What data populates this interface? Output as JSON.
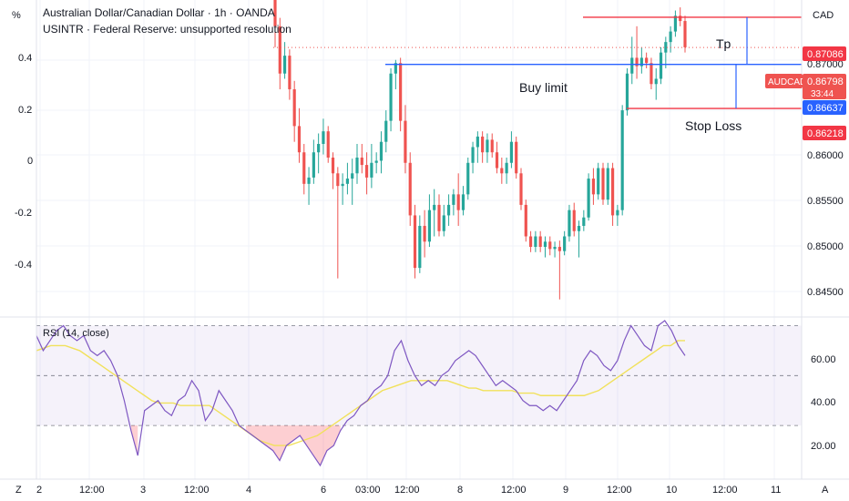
{
  "header": {
    "title": "Australian Dollar/Canadian Dollar · 1h · OANDA",
    "indicator": "USINTR · Federal Reserve: unsupported resolution",
    "left_unit": "%",
    "right_unit": "CAD",
    "rsi_label": "RSI (14, close)"
  },
  "left_axis": {
    "ticks": [
      "0.4",
      "0.2",
      "0",
      "-0.2",
      "-0.4"
    ]
  },
  "price_axis": {
    "ticks": [
      "0.87000",
      "0.86000",
      "0.85500",
      "0.85000",
      "0.84500"
    ]
  },
  "rsi_axis": {
    "ticks": [
      "60.00",
      "40.00",
      "20.00"
    ]
  },
  "time_axis": {
    "ticks": [
      "2",
      "12:00",
      "3",
      "12:00",
      "4",
      "6",
      "03:00",
      "12:00",
      "8",
      "12:00",
      "9",
      "12:00",
      "10",
      "12:00",
      "11"
    ],
    "corner_left": "Z",
    "corner_right": "A"
  },
  "annotations": {
    "tp": "Tp",
    "buy_limit": "Buy limit",
    "stop_loss": "Stop Loss"
  },
  "price_tags": {
    "tp": "0.87086",
    "symbol": "AUDCAD",
    "last": "0.86798",
    "countdown": "33:44",
    "buy": "0.86637",
    "sl": "0.86218"
  },
  "colors": {
    "up": "#26a69a",
    "down": "#ef5350",
    "blue_line": "#2962ff",
    "red_line": "#f23645",
    "rsi_line": "#7e57c2",
    "rsi_ma": "#f1e15b",
    "rsi_band": "#7e57c2"
  },
  "chart_data": [
    {
      "type": "candlestick",
      "title": "Australian Dollar/Canadian Dollar · 1h · OANDA",
      "ylabel": "CAD",
      "ylim": [
        0.8425,
        0.8725
      ],
      "levels": {
        "tp": 0.87086,
        "buy_limit": 0.86637,
        "stop_loss": 0.86218,
        "last": 0.86798
      },
      "candles": [
        [
          0.8735,
          0.8745,
          0.868,
          0.87
        ],
        [
          0.87,
          0.8708,
          0.864,
          0.8655
        ],
        [
          0.8655,
          0.8685,
          0.865,
          0.8672
        ],
        [
          0.8672,
          0.8678,
          0.863,
          0.864
        ],
        [
          0.864,
          0.8648,
          0.859,
          0.8605
        ],
        [
          0.8605,
          0.8622,
          0.857,
          0.858
        ],
        [
          0.858,
          0.8588,
          0.854,
          0.855
        ],
        [
          0.855,
          0.8566,
          0.853,
          0.8556
        ],
        [
          0.8556,
          0.8592,
          0.855,
          0.858
        ],
        [
          0.858,
          0.8598,
          0.856,
          0.8588
        ],
        [
          0.8588,
          0.8612,
          0.8578,
          0.86
        ],
        [
          0.86,
          0.8605,
          0.857,
          0.8575
        ],
        [
          0.8575,
          0.858,
          0.8545,
          0.856
        ],
        [
          0.856,
          0.8566,
          0.846,
          0.8548
        ],
        [
          0.8548,
          0.856,
          0.853,
          0.855
        ],
        [
          0.855,
          0.857,
          0.854,
          0.8555
        ],
        [
          0.8555,
          0.8574,
          0.853,
          0.856
        ],
        [
          0.856,
          0.8588,
          0.855,
          0.8575
        ],
        [
          0.8575,
          0.8588,
          0.856,
          0.8568
        ],
        [
          0.8568,
          0.858,
          0.854,
          0.8556
        ],
        [
          0.8556,
          0.8588,
          0.8546,
          0.857
        ],
        [
          0.857,
          0.858,
          0.856,
          0.8572
        ],
        [
          0.8572,
          0.86,
          0.856,
          0.859
        ],
        [
          0.859,
          0.862,
          0.858,
          0.861
        ],
        [
          0.861,
          0.866,
          0.86,
          0.8655
        ],
        [
          0.8655,
          0.8668,
          0.864,
          0.8665
        ],
        [
          0.8665,
          0.867,
          0.86,
          0.861
        ],
        [
          0.861,
          0.8625,
          0.856,
          0.857
        ],
        [
          0.857,
          0.858,
          0.851,
          0.852
        ],
        [
          0.852,
          0.853,
          0.846,
          0.847
        ],
        [
          0.847,
          0.852,
          0.8465,
          0.851
        ],
        [
          0.851,
          0.8525,
          0.848,
          0.8495
        ],
        [
          0.8495,
          0.854,
          0.849,
          0.8525
        ],
        [
          0.8525,
          0.8545,
          0.85,
          0.853
        ],
        [
          0.853,
          0.854,
          0.85,
          0.8505
        ],
        [
          0.8505,
          0.853,
          0.85,
          0.852
        ],
        [
          0.852,
          0.854,
          0.851,
          0.853
        ],
        [
          0.853,
          0.8545,
          0.852,
          0.854
        ],
        [
          0.854,
          0.856,
          0.851,
          0.8525
        ],
        [
          0.8525,
          0.8548,
          0.852,
          0.854
        ],
        [
          0.854,
          0.8575,
          0.8535,
          0.857
        ],
        [
          0.857,
          0.859,
          0.856,
          0.8585
        ],
        [
          0.8585,
          0.86,
          0.857,
          0.8595
        ],
        [
          0.8595,
          0.86,
          0.857,
          0.858
        ],
        [
          0.858,
          0.8598,
          0.857,
          0.8592
        ],
        [
          0.8592,
          0.8598,
          0.8575,
          0.858
        ],
        [
          0.858,
          0.859,
          0.856,
          0.8565
        ],
        [
          0.8565,
          0.8575,
          0.855,
          0.856
        ],
        [
          0.856,
          0.8575,
          0.855,
          0.857
        ],
        [
          0.857,
          0.86,
          0.8565,
          0.859
        ],
        [
          0.859,
          0.8595,
          0.8555,
          0.856
        ],
        [
          0.856,
          0.8565,
          0.8525,
          0.853
        ],
        [
          0.853,
          0.8535,
          0.8495,
          0.85
        ],
        [
          0.85,
          0.8505,
          0.8485,
          0.849
        ],
        [
          0.849,
          0.8505,
          0.8485,
          0.85
        ],
        [
          0.85,
          0.8505,
          0.8485,
          0.849
        ],
        [
          0.849,
          0.85,
          0.848,
          0.8495
        ],
        [
          0.8495,
          0.85,
          0.8482,
          0.8488
        ],
        [
          0.8488,
          0.8495,
          0.848,
          0.849
        ],
        [
          0.849,
          0.8496,
          0.844,
          0.8486
        ],
        [
          0.8486,
          0.8505,
          0.8482,
          0.85
        ],
        [
          0.85,
          0.853,
          0.8495,
          0.8525
        ],
        [
          0.8525,
          0.8532,
          0.85,
          0.8505
        ],
        [
          0.8505,
          0.8515,
          0.848,
          0.851
        ],
        [
          0.851,
          0.8525,
          0.8505,
          0.8518
        ],
        [
          0.8518,
          0.856,
          0.8515,
          0.8555
        ],
        [
          0.8555,
          0.8565,
          0.853,
          0.854
        ],
        [
          0.854,
          0.857,
          0.8535,
          0.8565
        ],
        [
          0.8565,
          0.857,
          0.853,
          0.8535
        ],
        [
          0.8535,
          0.857,
          0.853,
          0.8565
        ],
        [
          0.8565,
          0.857,
          0.851,
          0.852
        ],
        [
          0.852,
          0.853,
          0.851,
          0.8525
        ],
        [
          0.8525,
          0.8625,
          0.852,
          0.862
        ],
        [
          0.862,
          0.866,
          0.8615,
          0.8655
        ],
        [
          0.8655,
          0.869,
          0.8645,
          0.867
        ],
        [
          0.867,
          0.87,
          0.865,
          0.8662
        ],
        [
          0.8662,
          0.868,
          0.8655,
          0.867
        ],
        [
          0.867,
          0.8675,
          0.866,
          0.8665
        ],
        [
          0.8665,
          0.867,
          0.864,
          0.8645
        ],
        [
          0.8645,
          0.866,
          0.863,
          0.865
        ],
        [
          0.865,
          0.868,
          0.8645,
          0.8675
        ],
        [
          0.8675,
          0.869,
          0.866,
          0.8685
        ],
        [
          0.8685,
          0.87,
          0.8675,
          0.8695
        ],
        [
          0.8695,
          0.8715,
          0.869,
          0.871
        ],
        [
          0.871,
          0.8718,
          0.87,
          0.8705
        ],
        [
          0.8705,
          0.871,
          0.8675,
          0.868
        ]
      ]
    },
    {
      "type": "line",
      "title": "RSI (14, close)",
      "ylim": [
        10,
        72
      ],
      "bands": {
        "upper": 70,
        "middle": 50,
        "lower": 30
      },
      "series": [
        {
          "values": [
            66,
            60,
            64,
            68,
            70,
            66,
            64,
            66,
            60,
            58,
            60,
            56,
            50,
            40,
            28,
            18,
            36,
            38,
            40,
            36,
            34,
            40,
            42,
            48,
            44,
            32,
            36,
            44,
            40,
            36,
            30,
            28,
            26,
            24,
            22,
            20,
            16,
            22,
            24,
            26,
            22,
            18,
            14,
            20,
            22,
            28,
            32,
            34,
            38,
            40,
            44,
            46,
            50,
            60,
            64,
            56,
            50,
            46,
            48,
            46,
            50,
            52,
            56,
            58,
            60,
            58,
            54,
            50,
            46,
            48,
            46,
            44,
            40,
            38,
            38,
            36,
            38,
            36,
            40,
            44,
            48,
            56,
            60,
            58,
            54,
            52,
            56,
            64,
            70,
            66,
            62,
            60,
            70,
            72,
            68,
            62,
            58
          ]
        },
        {
          "values": [
            60,
            61,
            62,
            62,
            62,
            61,
            60,
            58,
            56,
            54,
            52,
            50,
            48,
            46,
            44,
            42,
            40,
            39,
            39,
            39,
            38,
            38,
            38,
            38,
            38,
            36,
            34,
            32,
            30,
            28,
            26,
            24,
            23,
            22,
            22,
            22,
            23,
            24,
            25,
            26,
            28,
            30,
            32,
            34,
            36,
            38,
            40,
            42,
            44,
            45,
            46,
            47,
            48,
            48,
            48,
            48,
            48,
            48,
            47,
            46,
            45,
            45,
            44,
            44,
            44,
            44,
            44,
            43,
            43,
            43,
            42,
            42,
            42,
            42,
            42,
            42,
            42,
            43,
            44,
            46,
            48,
            50,
            52,
            54,
            56,
            58,
            60,
            62,
            62,
            64,
            64
          ]
        }
      ]
    }
  ]
}
